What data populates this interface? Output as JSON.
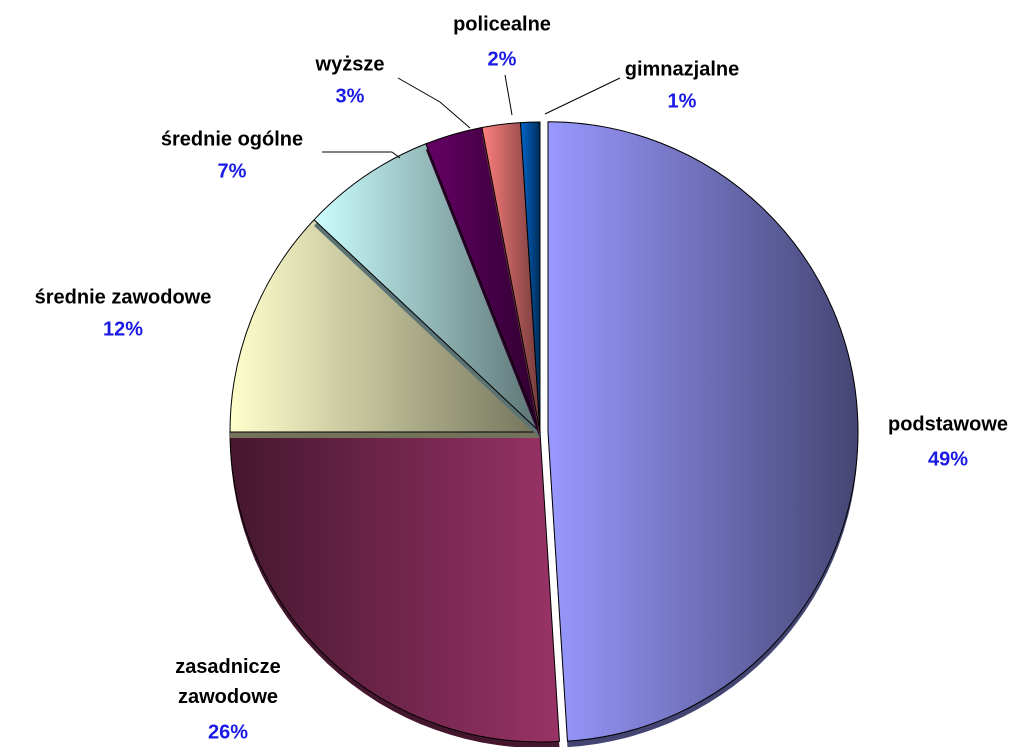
{
  "chart_data": {
    "type": "pie",
    "categories": [
      "podstawowe",
      "zasadnicze zawodowe",
      "średnie zawodowe",
      "średnie ogólne",
      "wyższe",
      "policealne",
      "gimnazjalne"
    ],
    "values": [
      49,
      26,
      12,
      7,
      3,
      2,
      1
    ],
    "value_labels": [
      "49%",
      "26%",
      "12%",
      "7%",
      "3%",
      "2%",
      "1%"
    ],
    "colors": [
      "#9999ff",
      "#993366",
      "#ffffcc",
      "#ccffff",
      "#660066",
      "#ff8080",
      "#0066cc"
    ]
  }
}
